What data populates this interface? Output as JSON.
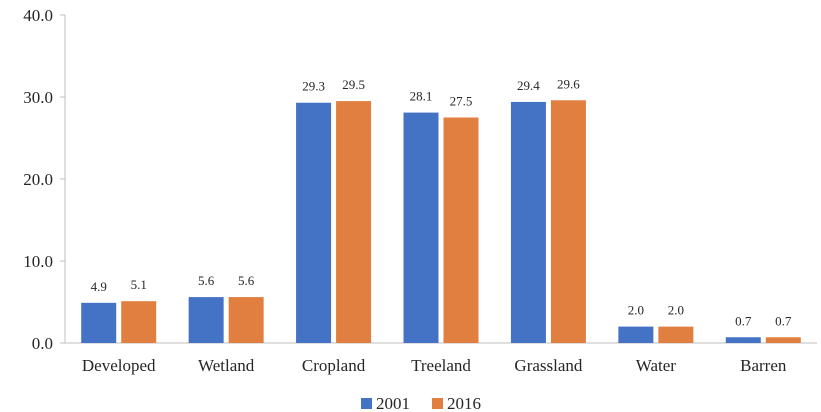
{
  "chart_data": {
    "type": "bar",
    "categories": [
      "Developed",
      "Wetland",
      "Cropland",
      "Treeland",
      "Grassland",
      "Water",
      "Barren"
    ],
    "series": [
      {
        "name": "2001",
        "values": [
          4.9,
          5.6,
          29.3,
          28.1,
          29.4,
          2.0,
          0.7
        ],
        "color": "#4472c4"
      },
      {
        "name": "2016",
        "values": [
          5.1,
          5.6,
          29.5,
          27.5,
          29.6,
          2.0,
          0.7
        ],
        "color": "#e07f3f"
      }
    ],
    "ylim": [
      0,
      40
    ],
    "yticks": [
      "0.0",
      "10.0",
      "20.0",
      "30.0",
      "40.0"
    ],
    "data_labels": [
      [
        "4.9",
        "5.6",
        "29.3",
        "28.1",
        "29.4",
        "2.0",
        "0.7"
      ],
      [
        "5.1",
        "5.6",
        "29.5",
        "27.5",
        "29.6",
        "2.0",
        "0.7"
      ]
    ],
    "title": "",
    "xlabel": "",
    "ylabel": "",
    "grid": false,
    "legend_position": "bottom-center"
  }
}
